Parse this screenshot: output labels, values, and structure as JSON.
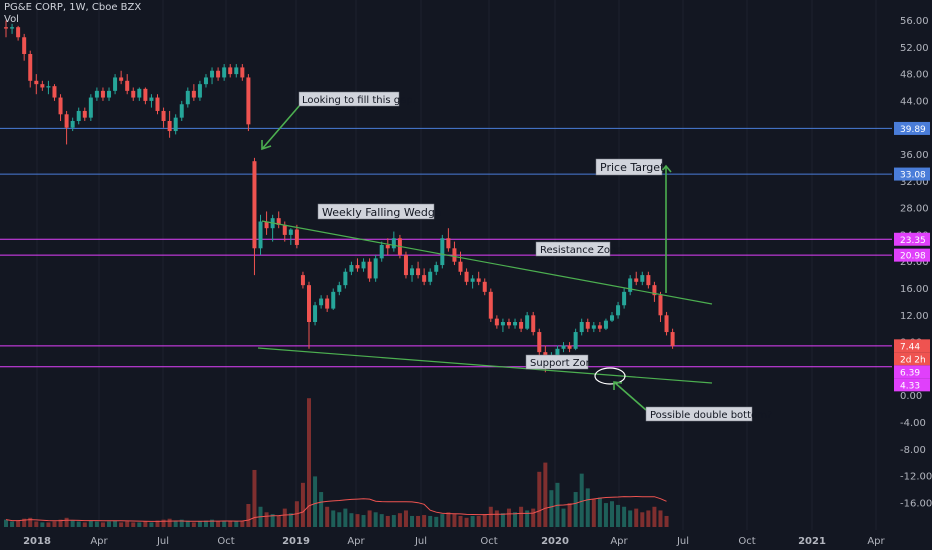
{
  "header": {
    "symbol": "PG&E CORP, 1W, Cboe BZX",
    "volume_label": "Vol"
  },
  "chart_data": {
    "type": "candlestick",
    "price_axis": {
      "ticks": [
        "56.00",
        "52.00",
        "48.00",
        "44.00",
        "40.00",
        "36.00",
        "32.00",
        "28.00",
        "24.00",
        "20.00",
        "16.00",
        "12.00",
        "8.00",
        "4.00",
        "0.00",
        "-4.00",
        "-8.00",
        "-12.00",
        "-16.00"
      ]
    },
    "time_axis": {
      "labels": [
        {
          "text": "2018",
          "bold": true
        },
        {
          "text": "Apr",
          "bold": false
        },
        {
          "text": "Jul",
          "bold": false
        },
        {
          "text": "Oct",
          "bold": false
        },
        {
          "text": "2019",
          "bold": true
        },
        {
          "text": "Apr",
          "bold": false
        },
        {
          "text": "Jul",
          "bold": false
        },
        {
          "text": "Oct",
          "bold": false
        },
        {
          "text": "2020",
          "bold": true
        },
        {
          "text": "Apr",
          "bold": false
        },
        {
          "text": "Jul",
          "bold": false
        },
        {
          "text": "Oct",
          "bold": false
        },
        {
          "text": "2021",
          "bold": true
        },
        {
          "text": "Apr",
          "bold": false
        }
      ]
    },
    "horizontal_lines": [
      {
        "value": 39.89,
        "label": "39.89",
        "color": "#4a7dd9"
      },
      {
        "value": 33.08,
        "label": "33.08",
        "color": "#4a7dd9"
      },
      {
        "value": 23.35,
        "label": "23.35",
        "color": "#e040fb"
      },
      {
        "value": 20.98,
        "label": "20.98",
        "color": "#e040fb"
      },
      {
        "value": 7.44,
        "label": "7.44",
        "color": "#e040fb"
      },
      {
        "value": 4.33,
        "label": "4.33",
        "color": "#e040fb"
      }
    ],
    "price_badges": [
      {
        "value": 7.44,
        "label": "7.44",
        "color": "#ef5350"
      },
      {
        "value": 5.1,
        "label": "2d 2h",
        "color": "#ef5350"
      },
      {
        "value": 6.39,
        "label": "6.39",
        "color": "#e040fb"
      }
    ],
    "candles": [
      [
        55,
        56,
        53.5,
        54.8
      ],
      [
        54.8,
        55.5,
        54,
        55
      ],
      [
        55,
        55.2,
        53,
        53.5
      ],
      [
        53.5,
        54,
        50,
        51
      ],
      [
        51,
        51.5,
        46,
        47
      ],
      [
        47,
        48,
        45,
        46.5
      ],
      [
        46.5,
        47,
        45.5,
        46
      ],
      [
        46,
        47,
        45,
        46.2
      ],
      [
        46.2,
        46.5,
        44,
        44.5
      ],
      [
        44.5,
        45,
        41,
        42
      ],
      [
        42,
        42.5,
        37.5,
        40
      ],
      [
        40,
        41.5,
        39.5,
        41
      ],
      [
        41,
        43,
        40.5,
        42.5
      ],
      [
        42.5,
        43,
        41,
        41.5
      ],
      [
        41.5,
        45,
        41,
        44.5
      ],
      [
        44.5,
        46,
        44,
        45.5
      ],
      [
        45.5,
        46,
        44,
        44.5
      ],
      [
        44.5,
        46,
        44,
        45.5
      ],
      [
        45.5,
        48,
        45,
        47.5
      ],
      [
        47.5,
        48.5,
        46.5,
        47
      ],
      [
        47,
        48,
        45,
        45.5
      ],
      [
        45.5,
        46,
        44,
        44.5
      ],
      [
        44.5,
        46,
        44,
        45.8
      ],
      [
        45.8,
        46,
        43.5,
        44
      ],
      [
        44,
        45,
        43,
        44.5
      ],
      [
        44.5,
        45,
        42,
        42.5
      ],
      [
        42.5,
        43,
        40,
        41
      ],
      [
        41,
        42.5,
        38.5,
        39.5
      ],
      [
        39.5,
        42,
        39,
        41.5
      ],
      [
        41.5,
        44,
        41,
        43.5
      ],
      [
        43.5,
        46,
        43,
        45.5
      ],
      [
        45.5,
        46.5,
        44,
        44.5
      ],
      [
        44.5,
        47,
        44,
        46.5
      ],
      [
        46.5,
        48,
        46,
        47.5
      ],
      [
        47.5,
        49,
        46.5,
        48.5
      ],
      [
        48.5,
        49,
        47,
        47.5
      ],
      [
        47.5,
        49.5,
        47,
        49
      ],
      [
        49,
        49.5,
        47.5,
        48
      ],
      [
        48,
        49.5,
        47.5,
        49
      ],
      [
        49,
        49.5,
        47,
        47.5
      ],
      [
        47.5,
        48,
        39.5,
        40.5
      ],
      [
        35,
        35.5,
        18,
        22
      ],
      [
        22,
        27,
        21,
        26
      ],
      [
        26,
        27.5,
        24,
        25
      ],
      [
        25,
        27,
        23,
        26.5
      ],
      [
        26.5,
        27.5,
        25,
        25.5
      ],
      [
        25.5,
        26,
        23,
        24
      ],
      [
        24,
        25,
        22.5,
        24.8
      ],
      [
        24.8,
        25.5,
        22,
        22.5
      ],
      [
        18,
        18.5,
        16,
        16.5
      ],
      [
        16.5,
        17,
        7,
        11
      ],
      [
        11,
        14,
        10.5,
        13.5
      ],
      [
        13.5,
        15,
        13,
        14.5
      ],
      [
        14.5,
        15,
        12.5,
        13
      ],
      [
        13,
        16,
        12.8,
        15.5
      ],
      [
        15.5,
        17,
        15,
        16.5
      ],
      [
        16.5,
        19,
        16,
        18.5
      ],
      [
        18.5,
        20,
        18,
        19.5
      ],
      [
        19.5,
        20.5,
        18.5,
        19
      ],
      [
        19,
        20.5,
        18.5,
        20
      ],
      [
        20,
        20.5,
        17,
        17.5
      ],
      [
        17.5,
        21,
        17,
        20.5
      ],
      [
        20.5,
        23,
        20,
        22.5
      ],
      [
        22.5,
        23.5,
        21,
        22
      ],
      [
        22,
        24.5,
        21.5,
        23.5
      ],
      [
        23.5,
        24,
        20.5,
        21
      ],
      [
        21,
        21.5,
        17.5,
        18
      ],
      [
        18,
        19.5,
        17,
        19
      ],
      [
        19,
        20,
        17.5,
        18
      ],
      [
        18,
        19,
        16.5,
        17
      ],
      [
        17,
        19,
        16.5,
        18.5
      ],
      [
        18.5,
        20,
        18,
        19.5
      ],
      [
        19.5,
        24,
        19,
        23.5
      ],
      [
        23.5,
        25,
        21.5,
        22
      ],
      [
        22,
        23,
        19.5,
        20
      ],
      [
        20,
        21.5,
        18,
        18.5
      ],
      [
        18.5,
        19,
        16.5,
        17
      ],
      [
        17,
        18,
        16,
        17.5
      ],
      [
        17.5,
        18.5,
        16.5,
        17
      ],
      [
        17,
        17.5,
        15,
        15.5
      ],
      [
        15.5,
        16,
        11,
        11.5
      ],
      [
        11.5,
        12,
        10,
        10.5
      ],
      [
        10.5,
        11.5,
        9.5,
        11
      ],
      [
        11,
        11.5,
        10,
        10.5
      ],
      [
        10.5,
        11.5,
        10,
        11
      ],
      [
        11,
        11.5,
        9.5,
        10
      ],
      [
        10,
        12.5,
        9.8,
        12
      ],
      [
        12,
        12.5,
        9,
        9.5
      ],
      [
        9.5,
        10,
        5.5,
        6.5
      ],
      [
        6.5,
        7.5,
        3.5,
        4.5
      ],
      [
        4.5,
        6.5,
        4,
        6
      ],
      [
        6,
        7.5,
        5.5,
        7
      ],
      [
        7,
        8,
        6.5,
        7.5
      ],
      [
        7.5,
        8,
        6.5,
        7
      ],
      [
        7,
        10,
        6.8,
        9.5
      ],
      [
        9.5,
        11.5,
        9,
        11
      ],
      [
        11,
        11.5,
        9.5,
        10
      ],
      [
        10,
        11,
        9.5,
        10.5
      ],
      [
        10.5,
        11,
        9.5,
        10
      ],
      [
        10,
        11.5,
        9.8,
        11.2
      ],
      [
        11.2,
        12.5,
        11,
        12
      ],
      [
        12,
        14,
        11.5,
        13.5
      ],
      [
        13.5,
        16,
        13,
        15.5
      ],
      [
        15.5,
        18,
        15,
        17.5
      ],
      [
        17.5,
        18.5,
        16.5,
        17
      ],
      [
        17,
        18.5,
        16.5,
        18
      ],
      [
        18,
        18.5,
        16,
        16.5
      ],
      [
        16.5,
        17,
        14,
        15
      ],
      [
        15,
        15.5,
        11,
        12
      ],
      [
        12,
        12.5,
        9,
        9.5
      ],
      [
        9.5,
        10,
        7,
        7.44
      ]
    ],
    "volumes": [
      [
        8,
        1
      ],
      [
        6,
        1
      ],
      [
        7,
        0
      ],
      [
        9,
        0
      ],
      [
        10,
        0
      ],
      [
        6,
        0
      ],
      [
        5,
        1
      ],
      [
        5,
        0
      ],
      [
        6,
        0
      ],
      [
        8,
        0
      ],
      [
        10,
        0
      ],
      [
        7,
        1
      ],
      [
        6,
        1
      ],
      [
        5,
        0
      ],
      [
        7,
        1
      ],
      [
        6,
        1
      ],
      [
        5,
        0
      ],
      [
        6,
        1
      ],
      [
        7,
        1
      ],
      [
        5,
        0
      ],
      [
        6,
        0
      ],
      [
        5,
        0
      ],
      [
        5,
        1
      ],
      [
        6,
        0
      ],
      [
        5,
        1
      ],
      [
        7,
        0
      ],
      [
        8,
        0
      ],
      [
        9,
        0
      ],
      [
        7,
        1
      ],
      [
        8,
        1
      ],
      [
        7,
        1
      ],
      [
        5,
        0
      ],
      [
        6,
        1
      ],
      [
        7,
        1
      ],
      [
        8,
        1
      ],
      [
        6,
        0
      ],
      [
        7,
        1
      ],
      [
        6,
        0
      ],
      [
        6,
        1
      ],
      [
        7,
        0
      ],
      [
        25,
        0
      ],
      [
        62,
        0
      ],
      [
        22,
        1
      ],
      [
        16,
        0
      ],
      [
        14,
        1
      ],
      [
        12,
        0
      ],
      [
        20,
        0
      ],
      [
        15,
        1
      ],
      [
        28,
        0
      ],
      [
        48,
        0
      ],
      [
        140,
        0
      ],
      [
        55,
        1
      ],
      [
        38,
        1
      ],
      [
        22,
        0
      ],
      [
        18,
        1
      ],
      [
        16,
        1
      ],
      [
        20,
        1
      ],
      [
        15,
        1
      ],
      [
        14,
        0
      ],
      [
        13,
        1
      ],
      [
        18,
        0
      ],
      [
        16,
        1
      ],
      [
        14,
        1
      ],
      [
        12,
        0
      ],
      [
        13,
        1
      ],
      [
        15,
        0
      ],
      [
        18,
        0
      ],
      [
        12,
        1
      ],
      [
        12,
        0
      ],
      [
        13,
        0
      ],
      [
        12,
        1
      ],
      [
        11,
        1
      ],
      [
        14,
        1
      ],
      [
        16,
        0
      ],
      [
        14,
        0
      ],
      [
        12,
        0
      ],
      [
        10,
        0
      ],
      [
        12,
        1
      ],
      [
        12,
        0
      ],
      [
        14,
        0
      ],
      [
        22,
        0
      ],
      [
        18,
        0
      ],
      [
        15,
        1
      ],
      [
        20,
        0
      ],
      [
        16,
        1
      ],
      [
        22,
        0
      ],
      [
        18,
        1
      ],
      [
        20,
        0
      ],
      [
        60,
        0
      ],
      [
        70,
        0
      ],
      [
        40,
        1
      ],
      [
        48,
        1
      ],
      [
        20,
        1
      ],
      [
        26,
        0
      ],
      [
        38,
        1
      ],
      [
        58,
        1
      ],
      [
        42,
        1
      ],
      [
        30,
        0
      ],
      [
        32,
        1
      ],
      [
        26,
        1
      ],
      [
        28,
        1
      ],
      [
        24,
        1
      ],
      [
        22,
        1
      ],
      [
        18,
        1
      ],
      [
        20,
        0
      ],
      [
        16,
        0
      ],
      [
        18,
        0
      ],
      [
        22,
        0
      ],
      [
        18,
        0
      ],
      [
        12,
        0
      ]
    ]
  },
  "annotations": [
    {
      "id": "gap",
      "text": "Looking to fill this gap."
    },
    {
      "id": "target",
      "text": "Price Target"
    },
    {
      "id": "wedge",
      "text": "Weekly Falling Wedge"
    },
    {
      "id": "resistance",
      "text": "Resistance Zone"
    },
    {
      "id": "support",
      "text": "Support Zone"
    },
    {
      "id": "double",
      "text": "Possible double bottom?"
    }
  ],
  "colors": {
    "up": "#26a69a",
    "down": "#ef5350",
    "trend": "#4caf50",
    "arrow": "#4caf50",
    "background": "#131722"
  }
}
